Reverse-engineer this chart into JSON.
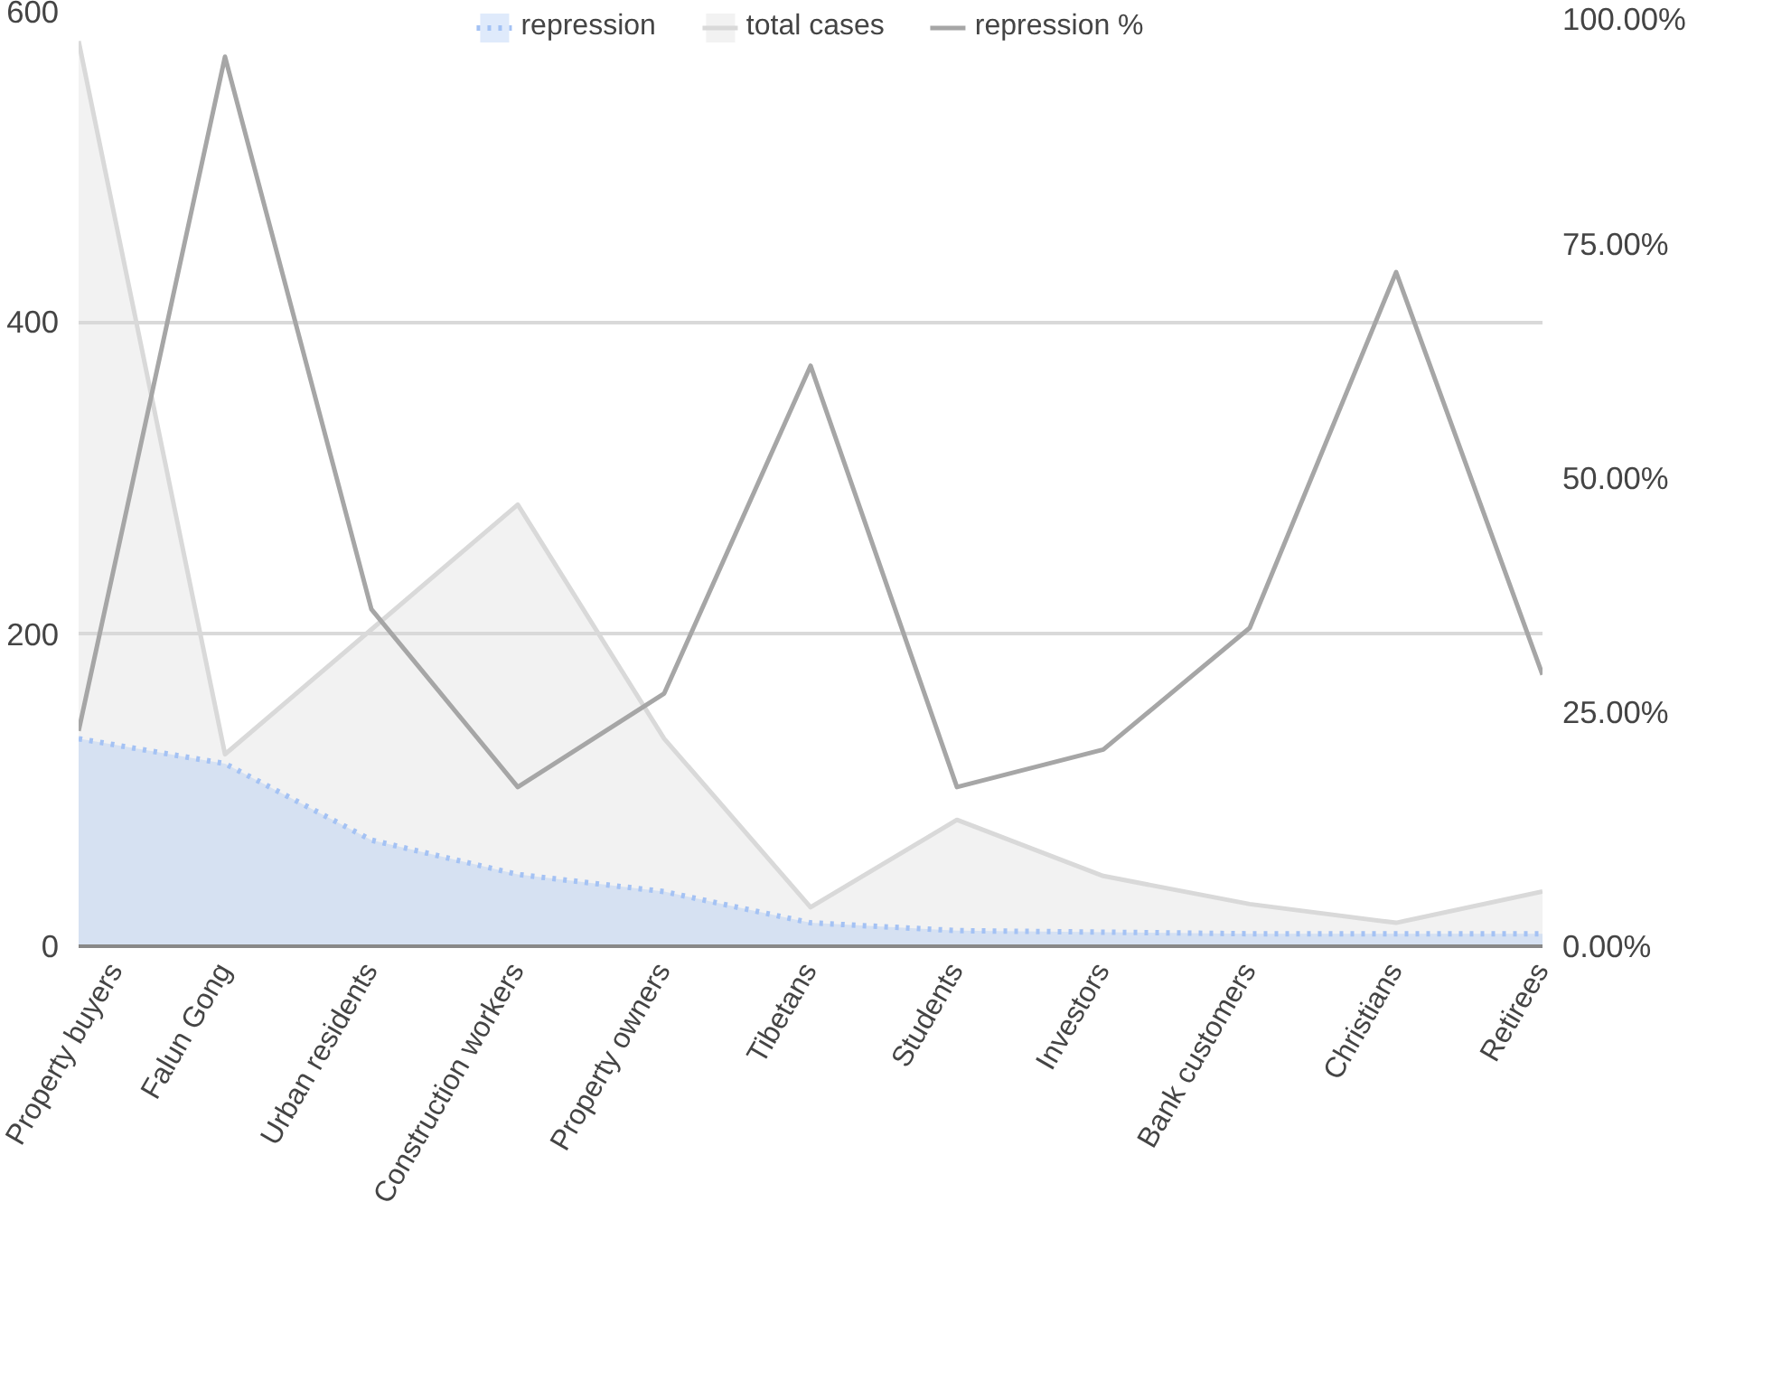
{
  "chart_data": {
    "type": "area",
    "categories": [
      "Property buyers",
      "Falun Gong",
      "Urban residents",
      "Construction workers",
      "Property owners",
      "Tibetans",
      "Students",
      "Investors",
      "Bank customers",
      "Christians",
      "Retirees"
    ],
    "series": [
      {
        "name": "repression",
        "color": "#a4c2f4",
        "line_style": "dotted",
        "values": [
          133,
          117,
          68,
          46,
          35,
          15,
          10,
          9,
          8,
          8,
          8
        ]
      },
      {
        "name": "total cases",
        "color": "#d9d9d9",
        "line_style": "solid",
        "values": [
          580,
          123,
          203,
          283,
          133,
          25,
          81,
          45,
          27,
          15,
          35
        ]
      },
      {
        "name": "repression %",
        "type": "line",
        "axis": "y2",
        "color": "#a6a6a6",
        "line_style": "solid",
        "values": [
          23,
          95,
          36,
          17,
          27,
          62,
          17,
          21,
          34,
          72,
          29
        ]
      }
    ],
    "ylim": [
      0,
      600
    ],
    "yticks": [
      0,
      200,
      400,
      600
    ],
    "y2lim": [
      0,
      100
    ],
    "y2ticks": [
      {
        "value": 0,
        "label": "0.00%"
      },
      {
        "value": 25,
        "label": "25.00%"
      },
      {
        "value": 50,
        "label": "50.00%"
      },
      {
        "value": 75,
        "label": "75.00%"
      },
      {
        "value": 100,
        "label": "100.00%"
      }
    ],
    "grid": "y",
    "legend": "top"
  }
}
